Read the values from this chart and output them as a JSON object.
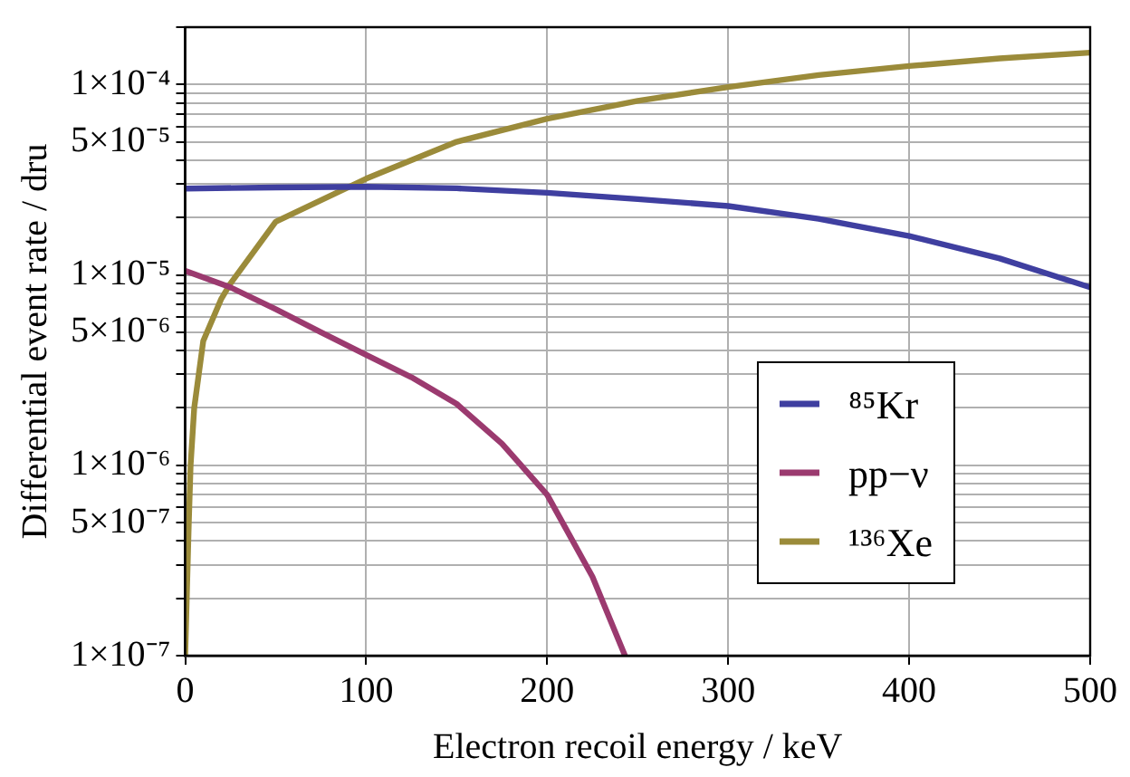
{
  "chart_data": {
    "type": "line",
    "xlabel": "Electron recoil energy / keV",
    "ylabel": "Differential event rate / dru",
    "log": "y",
    "grid": true,
    "legend": "bottom right",
    "marker": "none",
    "line_style": "solid",
    "xlim": [
      0,
      500
    ],
    "xticks": [
      0,
      100,
      200,
      300,
      400,
      500
    ],
    "ylim": [
      1e-07,
      0.0002
    ],
    "yticks": [
      {
        "value": 1e-07,
        "label": "1×10⁻⁷"
      },
      {
        "value": 2e-07,
        "label": null
      },
      {
        "value": 3e-07,
        "label": null
      },
      {
        "value": 4e-07,
        "label": null
      },
      {
        "value": 5e-07,
        "label": "5×10⁻⁷"
      },
      {
        "value": 6e-07,
        "label": null
      },
      {
        "value": 7e-07,
        "label": null
      },
      {
        "value": 8e-07,
        "label": null
      },
      {
        "value": 9e-07,
        "label": null
      },
      {
        "value": 1e-06,
        "label": "1×10⁻⁶"
      },
      {
        "value": 2e-06,
        "label": null
      },
      {
        "value": 3e-06,
        "label": null
      },
      {
        "value": 4e-06,
        "label": null
      },
      {
        "value": 5e-06,
        "label": "5×10⁻⁶"
      },
      {
        "value": 6e-06,
        "label": null
      },
      {
        "value": 7e-06,
        "label": null
      },
      {
        "value": 8e-06,
        "label": null
      },
      {
        "value": 9e-06,
        "label": null
      },
      {
        "value": 1e-05,
        "label": "1×10⁻⁵"
      },
      {
        "value": 2e-05,
        "label": null
      },
      {
        "value": 3e-05,
        "label": null
      },
      {
        "value": 4e-05,
        "label": null
      },
      {
        "value": 5e-05,
        "label": "5×10⁻⁵"
      },
      {
        "value": 6e-05,
        "label": null
      },
      {
        "value": 7e-05,
        "label": null
      },
      {
        "value": 8e-05,
        "label": null
      },
      {
        "value": 9e-05,
        "label": null
      },
      {
        "value": 0.0001,
        "label": "1×10⁻⁴"
      },
      {
        "value": 0.0002,
        "label": null
      }
    ],
    "series": [
      {
        "name": "⁸⁵Kr",
        "color": "#3f3fa0",
        "x": [
          0,
          50,
          100,
          150,
          200,
          250,
          300,
          350,
          400,
          450,
          500
        ],
        "values": [
          2.84e-05,
          2.88e-05,
          2.9e-05,
          2.85e-05,
          2.7e-05,
          2.5e-05,
          2.3e-05,
          1.97e-05,
          1.6e-05,
          1.22e-05,
          8.6e-06
        ]
      },
      {
        "name": "pp−ν",
        "color": "#9b3a6f",
        "x": [
          0,
          25,
          50,
          75,
          100,
          125,
          150,
          175,
          200,
          225,
          243
        ],
        "values": [
          1.05e-05,
          8.6e-06,
          6.6e-06,
          5e-06,
          3.8e-06,
          2.9e-06,
          2.1e-06,
          1.3e-06,
          7e-07,
          2.6e-07,
          1e-07
        ]
      },
      {
        "name": "¹³⁶Xe",
        "color": "#9b8b3a",
        "x": [
          0,
          2,
          3,
          5,
          10,
          20,
          25,
          50,
          100,
          150,
          200,
          250,
          300,
          350,
          400,
          450,
          500
        ],
        "values": [
          1e-07,
          5e-07,
          1e-06,
          2e-06,
          4.5e-06,
          7.5e-06,
          9e-06,
          1.9e-05,
          3.2e-05,
          5e-05,
          6.6e-05,
          8.2e-05,
          9.7e-05,
          0.000112,
          0.000125,
          0.000137,
          0.000147
        ]
      }
    ]
  }
}
